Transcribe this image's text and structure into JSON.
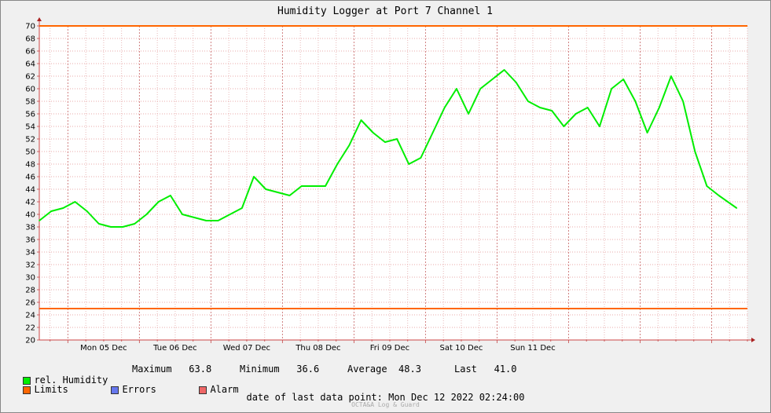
{
  "title": "Humidity Logger at Port 7 Channel 1",
  "chart_data": {
    "type": "line",
    "title": "Humidity Logger at Port 7 Channel 1",
    "ylim": [
      20,
      70
    ],
    "ytick_step": 2,
    "x_day_labels": [
      "Mon 05 Dec",
      "Tue 06 Dec",
      "Wed 07 Dec",
      "Thu 08 Dec",
      "Fri 09 Dec",
      "Sat 10 Dec",
      "Sun 11 Dec"
    ],
    "x_hours": [
      0,
      4,
      8,
      12,
      16,
      20,
      24,
      28,
      32,
      36,
      40,
      44,
      48,
      52,
      56,
      60,
      64,
      68,
      72,
      76,
      80,
      84,
      88,
      92,
      96,
      100,
      104,
      108,
      112,
      116,
      120,
      124,
      128,
      132,
      136,
      140,
      144,
      148,
      152,
      156,
      160,
      164,
      168,
      172,
      176,
      180,
      184,
      188,
      192,
      196,
      200,
      204,
      208,
      212,
      216,
      220,
      224,
      228,
      234
    ],
    "series": [
      {
        "name": "rel. Humidity",
        "color": "#00ee00",
        "values": [
          39,
          40.5,
          41,
          42,
          40.5,
          38.5,
          38,
          38,
          38.5,
          40,
          42,
          43,
          40,
          39.5,
          39,
          39,
          40,
          41,
          46,
          44,
          43.5,
          43,
          44.5,
          44.5,
          44.5,
          48,
          51,
          55,
          53,
          51.5,
          52,
          48,
          49,
          53,
          57,
          60,
          56,
          60,
          61.5,
          63,
          61,
          58,
          57,
          56.5,
          54,
          56,
          57,
          54,
          60,
          61.5,
          58,
          53,
          57,
          62,
          58,
          50,
          44.5,
          43,
          41
        ]
      },
      {
        "name": "Limits",
        "color": "#ff6600",
        "values_upper": 70,
        "values_lower": 25
      }
    ],
    "grid": true
  },
  "legend": {
    "items": [
      {
        "label": "rel. Humidity",
        "color": "#00ee00"
      },
      {
        "label": "Limits",
        "color": "#ff6600"
      },
      {
        "label": "Errors",
        "color": "#6677ee"
      },
      {
        "label": "Alarm",
        "color": "#ee6666"
      }
    ],
    "maximum_label": "Maximum",
    "maximum": "63.8",
    "minimum_label": "Minimum",
    "minimum": "36.6",
    "average_label": "Average",
    "average": "48.3",
    "last_label": "Last",
    "last": "41.0"
  },
  "footer": {
    "date_text": "date of last data point:  Mon Dec 12 2022 02:24:00",
    "credit": "OCTA&A Log & Guard"
  }
}
